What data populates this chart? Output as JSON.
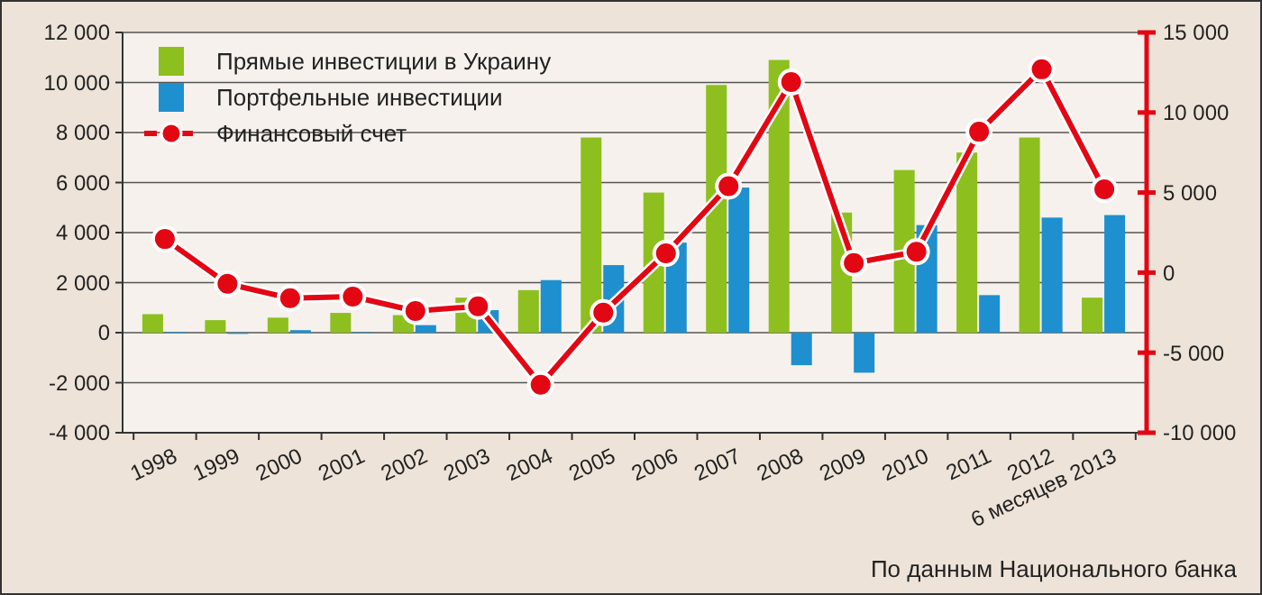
{
  "chart_data": {
    "type": "bar",
    "categories": [
      "1998",
      "1999",
      "2000",
      "2001",
      "2002",
      "2003",
      "2004",
      "2005",
      "2006",
      "2007",
      "2008",
      "2009",
      "2010",
      "2011",
      "2012",
      "6 месяцев 2013"
    ],
    "series": [
      {
        "name": "Прямые инвестиции в Украину",
        "color": "#8dbf1e",
        "values": [
          740,
          500,
          600,
          790,
          700,
          1400,
          1700,
          7800,
          5600,
          9900,
          10900,
          4800,
          6500,
          7200,
          7800,
          1400
        ]
      },
      {
        "name": "Портфельные инвестиции",
        "color": "#1e8fcf",
        "values": [
          30,
          -50,
          100,
          20,
          300,
          900,
          2100,
          2700,
          3600,
          5800,
          -1300,
          -1600,
          4300,
          1500,
          4600,
          4700
        ]
      },
      {
        "name": "Финансовый счет",
        "type": "line",
        "axis": "y2",
        "color": "#e30613",
        "marker": "circle",
        "line_style": "solid",
        "values": [
          2100,
          -700,
          -1600,
          -1500,
          -2400,
          -2100,
          -7000,
          -2500,
          1200,
          5400,
          11900,
          600,
          1300,
          8800,
          12700,
          5200
        ]
      }
    ],
    "ylim": [
      -4000,
      12000
    ],
    "yticks": [
      {
        "value": -4000,
        "label": "-4 000"
      },
      {
        "value": -2000,
        "label": "-2 000"
      },
      0,
      {
        "value": 2000,
        "label": "2 000"
      },
      {
        "value": 4000,
        "label": "4 000"
      },
      {
        "value": 6000,
        "label": "6 000"
      },
      {
        "value": 8000,
        "label": "8 000"
      },
      {
        "value": 10000,
        "label": "10 000"
      },
      {
        "value": 12000,
        "label": "12 000"
      }
    ],
    "y2lim": [
      -10000,
      15000
    ],
    "y2ticks": [
      {
        "value": -10000,
        "label": "-10 000"
      },
      {
        "value": -5000,
        "label": "-5 000"
      },
      0,
      {
        "value": 5000,
        "label": "5 000"
      },
      {
        "value": 10000,
        "label": "10 000"
      },
      {
        "value": 15000,
        "label": "15 000"
      }
    ],
    "grid": "y",
    "legend": "top left",
    "annotations": [
      "По данным Национального банка"
    ]
  }
}
